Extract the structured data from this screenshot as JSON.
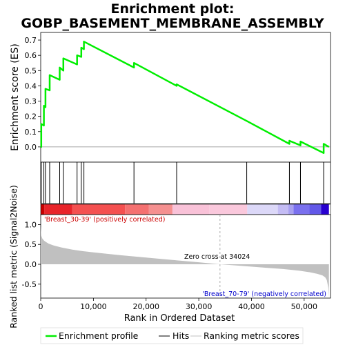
{
  "chart_data": {
    "type": "line",
    "title_line1": "Enrichment plot:",
    "title_line2": "GOBP_BASEMENT_MEMBRANE_ASSEMBLY",
    "es_ylabel": "Enrichment score (ES)",
    "metric_ylabel": "Ranked list metric (Signal2Noise)",
    "xlabel": "Rank in Ordered Dataset",
    "xlim": [
      0,
      55000
    ],
    "es_ylim": [
      -0.1,
      0.75
    ],
    "metric_ylim": [
      -0.85,
      1.25
    ],
    "x_ticks": [
      0,
      10000,
      20000,
      30000,
      40000,
      50000
    ],
    "x_tick_labels": [
      "0",
      "10,000",
      "20,000",
      "30,000",
      "40,000",
      "50,000"
    ],
    "es_ticks": [
      0.0,
      0.1,
      0.2,
      0.3,
      0.4,
      0.5,
      0.6,
      0.7
    ],
    "es_tick_labels": [
      "0.0",
      "0.1",
      "0.2",
      "0.3",
      "0.4",
      "0.5",
      "0.6",
      "0.7"
    ],
    "metric_ticks": [
      -0.5,
      0.0,
      0.5,
      1.0
    ],
    "metric_tick_labels": [
      "-0.5",
      "0.0",
      "0.5",
      "1.0"
    ],
    "hits": [
      100,
      600,
      900,
      1700,
      3600,
      4300,
      6900,
      7700,
      8200,
      17700,
      25800,
      39100,
      47200,
      49300,
      53700
    ],
    "es_profile": {
      "x": [
        0,
        100,
        100,
        600,
        600,
        900,
        900,
        1700,
        1700,
        3600,
        3600,
        4300,
        4300,
        6900,
        6900,
        7700,
        7700,
        8200,
        8200,
        17700,
        17700,
        25800,
        25800,
        39100,
        39100,
        47200,
        47200,
        49300,
        49300,
        53700,
        53700,
        54700
      ],
      "y": [
        0.0,
        0.0,
        0.15,
        0.14,
        0.27,
        0.26,
        0.38,
        0.37,
        0.47,
        0.44,
        0.52,
        0.5,
        0.58,
        0.54,
        0.6,
        0.59,
        0.65,
        0.64,
        0.69,
        0.52,
        0.55,
        0.4,
        0.41,
        0.17,
        0.17,
        0.02,
        0.04,
        0.01,
        0.035,
        -0.04,
        0.02,
        0.0
      ]
    },
    "metric_curve": {
      "x": [
        0,
        100,
        300,
        600,
        1000,
        1500,
        2500,
        4000,
        6000,
        8000,
        10000,
        15000,
        20000,
        25000,
        30000,
        34024,
        38000,
        42000,
        46000,
        49000,
        51000,
        52500,
        53500,
        54000,
        54300,
        54600,
        54700
      ],
      "y": [
        0.95,
        0.72,
        0.65,
        0.6,
        0.56,
        0.52,
        0.47,
        0.42,
        0.37,
        0.33,
        0.3,
        0.23,
        0.17,
        0.11,
        0.05,
        0.0,
        -0.04,
        -0.08,
        -0.12,
        -0.16,
        -0.2,
        -0.24,
        -0.28,
        -0.33,
        -0.4,
        -0.6,
        -0.82
      ]
    },
    "zero_cross": 34024,
    "zero_cross_text": "Zero cross at 34024",
    "pos_label": "'Breast_30-39' (positively correlated)",
    "neg_label": "'Breast_70-79' (negatively correlated)",
    "heat_segments": [
      {
        "start": 0,
        "end": 700,
        "color": "#c80000"
      },
      {
        "start": 700,
        "end": 6000,
        "color": "#e8242a"
      },
      {
        "start": 6000,
        "end": 16000,
        "color": "#f45050"
      },
      {
        "start": 16000,
        "end": 20500,
        "color": "#f47070"
      },
      {
        "start": 20500,
        "end": 25000,
        "color": "#f59090"
      },
      {
        "start": 25000,
        "end": 32000,
        "color": "#f9c2d8"
      },
      {
        "start": 32000,
        "end": 39200,
        "color": "#fac8dc"
      },
      {
        "start": 39200,
        "end": 45000,
        "color": "#dcd8f8"
      },
      {
        "start": 45000,
        "end": 47000,
        "color": "#c4bcf4"
      },
      {
        "start": 47000,
        "end": 48000,
        "color": "#a8a0f0"
      },
      {
        "start": 48000,
        "end": 51000,
        "color": "#7a70ee"
      },
      {
        "start": 51000,
        "end": 53200,
        "color": "#6258e8"
      },
      {
        "start": 53200,
        "end": 54700,
        "color": "#2800d0"
      }
    ],
    "legend": {
      "enrichment": "Enrichment profile",
      "hits": "Hits",
      "ranking": "Ranking metric scores"
    },
    "colors": {
      "es_line": "#00ee00",
      "hit": "#000000",
      "metric_fill": "#c0c0c0",
      "pos_label": "#cc0000",
      "neg_label": "#0000cc"
    }
  }
}
